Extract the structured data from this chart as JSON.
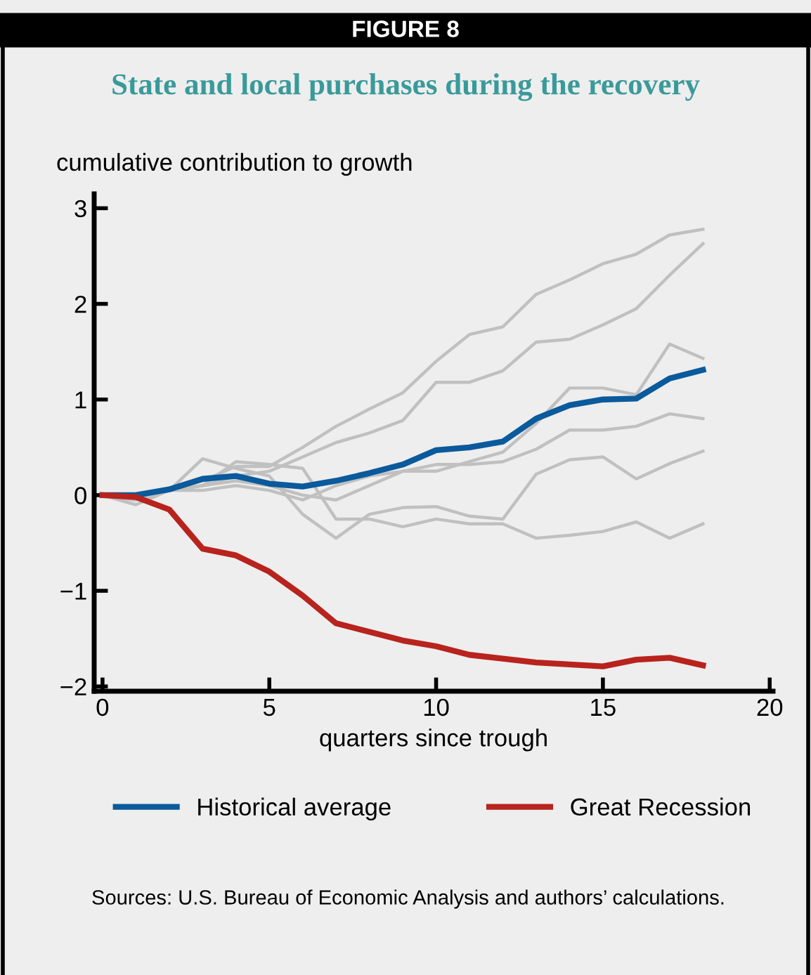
{
  "chart_data": {
    "type": "line",
    "title": "FIGURE 8",
    "subtitle": "State and local purchases during the recovery",
    "ylabel": "cumulative contribution to growth",
    "xlabel": "quarters since trough",
    "x": [
      0,
      1,
      2,
      3,
      4,
      5,
      6,
      7,
      8,
      9,
      10,
      11,
      12,
      13,
      14,
      15,
      16,
      17,
      18
    ],
    "series": [
      {
        "color": "#c0c0c0",
        "values": [
          0,
          -0.05,
          0.05,
          0.15,
          0.3,
          0.3,
          0.5,
          0.72,
          0.9,
          1.07,
          1.4,
          1.68,
          1.76,
          2.1,
          2.25,
          2.42,
          2.52,
          2.72,
          2.78
        ]
      },
      {
        "color": "#c0c0c0",
        "values": [
          0,
          0,
          0.05,
          0.1,
          0.2,
          0.25,
          0.4,
          0.55,
          0.65,
          0.78,
          1.18,
          1.18,
          1.3,
          1.6,
          1.63,
          1.78,
          1.95,
          2.3,
          2.63
        ]
      },
      {
        "color": "#c0c0c0",
        "values": [
          0,
          0,
          0.05,
          0.1,
          0.15,
          0.1,
          0,
          -0.05,
          0.1,
          0.25,
          0.25,
          0.35,
          0.45,
          0.75,
          1.12,
          1.12,
          1.05,
          1.58,
          1.43
        ]
      },
      {
        "color": "#c0c0c0",
        "values": [
          0,
          0,
          0.05,
          0.05,
          0.1,
          0.05,
          -0.05,
          0.1,
          0.2,
          0.25,
          0.32,
          0.32,
          0.35,
          0.48,
          0.68,
          0.68,
          0.72,
          0.85,
          0.8
        ]
      },
      {
        "color": "#c0c0c0",
        "values": [
          0,
          -0.1,
          0.05,
          0.38,
          0.28,
          0.2,
          -0.2,
          -0.45,
          -0.2,
          -0.13,
          -0.12,
          -0.22,
          -0.25,
          0.22,
          0.37,
          0.4,
          0.17,
          0.33,
          0.46
        ]
      },
      {
        "color": "#c0c0c0",
        "values": [
          0,
          -0.05,
          0.05,
          0.1,
          0.35,
          0.32,
          0.28,
          -0.25,
          -0.25,
          -0.33,
          -0.25,
          -0.3,
          -0.3,
          -0.45,
          -0.42,
          -0.38,
          -0.28,
          -0.45,
          -0.3
        ]
      },
      {
        "name": "Historical average",
        "color": "#0a5a9c",
        "values": [
          0,
          0,
          0.06,
          0.17,
          0.2,
          0.12,
          0.09,
          0.15,
          0.23,
          0.32,
          0.47,
          0.5,
          0.56,
          0.8,
          0.94,
          1.0,
          1.01,
          1.22,
          1.31
        ]
      },
      {
        "name": "Great Recession",
        "color": "#b8231d",
        "values": [
          0,
          -0.02,
          -0.15,
          -0.56,
          -0.63,
          -0.8,
          -1.05,
          -1.34,
          -1.43,
          -1.52,
          -1.58,
          -1.67,
          -1.71,
          -1.75,
          -1.77,
          -1.79,
          -1.72,
          -1.7,
          -1.78
        ]
      }
    ],
    "xlim": [
      -0.25,
      20.1
    ],
    "ylim": [
      -2.05,
      3.15
    ],
    "xticks": [
      0,
      5,
      10,
      15,
      20
    ],
    "yticks": [
      -2,
      -1,
      0,
      1,
      2,
      3
    ],
    "grid": false,
    "legend": "bottom",
    "line_style": "solid",
    "marker": "none",
    "annotations": [
      "Sources: U.S. Bureau of Economic Analysis and authors’ calculations."
    ]
  }
}
